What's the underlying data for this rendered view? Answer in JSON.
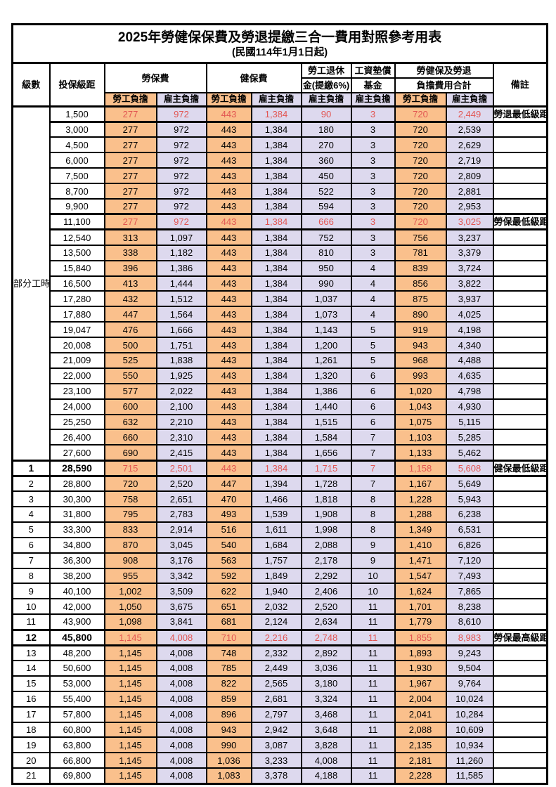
{
  "title": "2025年勞健保保費及勞退提繳三合一費用對照參考用表",
  "subtitle": "(民國114年1月1日起)",
  "header": {
    "level": "級數",
    "bracket": "投保級距",
    "labor_fee": "勞保費",
    "health_fee": "健保費",
    "pension_line1": "勞工退休",
    "pension_line2": "金(提繳6%)",
    "fund_line1": "工資墊償",
    "fund_line2": "基金",
    "total_line1": "勞健保及勞退",
    "total_line2": "負擔費用合計",
    "remark": "備註",
    "employee": "勞工負擔",
    "employer": "雇主負擔"
  },
  "part_time_label": "部分工時",
  "colors": {
    "employee_bg": "#FAC08C",
    "employer_bg": "#DDD9EE",
    "key_value_red": "#E25552",
    "remark_red": "#EE7C7C",
    "border": "#000000"
  },
  "rows": [
    {
      "level": "",
      "bracket": "1,500",
      "labor_emp": "277",
      "labor_er": "972",
      "health_emp": "443",
      "health_er": "1,384",
      "pension_er": "90",
      "fund_er": "3",
      "total_emp": "720",
      "total_er": "2,449",
      "remark": "勞退最低級距",
      "red": true,
      "bold": false
    },
    {
      "level": "",
      "bracket": "3,000",
      "labor_emp": "277",
      "labor_er": "972",
      "health_emp": "443",
      "health_er": "1,384",
      "pension_er": "180",
      "fund_er": "3",
      "total_emp": "720",
      "total_er": "2,539",
      "remark": "",
      "red": false,
      "bold": false
    },
    {
      "level": "",
      "bracket": "4,500",
      "labor_emp": "277",
      "labor_er": "972",
      "health_emp": "443",
      "health_er": "1,384",
      "pension_er": "270",
      "fund_er": "3",
      "total_emp": "720",
      "total_er": "2,629",
      "remark": "",
      "red": false,
      "bold": false
    },
    {
      "level": "",
      "bracket": "6,000",
      "labor_emp": "277",
      "labor_er": "972",
      "health_emp": "443",
      "health_er": "1,384",
      "pension_er": "360",
      "fund_er": "3",
      "total_emp": "720",
      "total_er": "2,719",
      "remark": "",
      "red": false,
      "bold": false
    },
    {
      "level": "",
      "bracket": "7,500",
      "labor_emp": "277",
      "labor_er": "972",
      "health_emp": "443",
      "health_er": "1,384",
      "pension_er": "450",
      "fund_er": "3",
      "total_emp": "720",
      "total_er": "2,809",
      "remark": "",
      "red": false,
      "bold": false
    },
    {
      "level": "",
      "bracket": "8,700",
      "labor_emp": "277",
      "labor_er": "972",
      "health_emp": "443",
      "health_er": "1,384",
      "pension_er": "522",
      "fund_er": "3",
      "total_emp": "720",
      "total_er": "2,881",
      "remark": "",
      "red": false,
      "bold": false
    },
    {
      "level": "",
      "bracket": "9,900",
      "labor_emp": "277",
      "labor_er": "972",
      "health_emp": "443",
      "health_er": "1,384",
      "pension_er": "594",
      "fund_er": "3",
      "total_emp": "720",
      "total_er": "2,953",
      "remark": "",
      "red": false,
      "bold": false
    },
    {
      "level": "",
      "bracket": "11,100",
      "labor_emp": "277",
      "labor_er": "972",
      "health_emp": "443",
      "health_er": "1,384",
      "pension_er": "666",
      "fund_er": "3",
      "total_emp": "720",
      "total_er": "3,025",
      "remark": "勞保最低級距",
      "red": true,
      "bold": false
    },
    {
      "level": "",
      "bracket": "12,540",
      "labor_emp": "313",
      "labor_er": "1,097",
      "health_emp": "443",
      "health_er": "1,384",
      "pension_er": "752",
      "fund_er": "3",
      "total_emp": "756",
      "total_er": "3,237",
      "remark": "",
      "red": false,
      "bold": false
    },
    {
      "level": "",
      "bracket": "13,500",
      "labor_emp": "338",
      "labor_er": "1,182",
      "health_emp": "443",
      "health_er": "1,384",
      "pension_er": "810",
      "fund_er": "3",
      "total_emp": "781",
      "total_er": "3,379",
      "remark": "",
      "red": false,
      "bold": false
    },
    {
      "level": "",
      "bracket": "15,840",
      "labor_emp": "396",
      "labor_er": "1,386",
      "health_emp": "443",
      "health_er": "1,384",
      "pension_er": "950",
      "fund_er": "4",
      "total_emp": "839",
      "total_er": "3,724",
      "remark": "",
      "red": false,
      "bold": false
    },
    {
      "level": "",
      "bracket": "16,500",
      "labor_emp": "413",
      "labor_er": "1,444",
      "health_emp": "443",
      "health_er": "1,384",
      "pension_er": "990",
      "fund_er": "4",
      "total_emp": "856",
      "total_er": "3,822",
      "remark": "",
      "red": false,
      "bold": false
    },
    {
      "level": "",
      "bracket": "17,280",
      "labor_emp": "432",
      "labor_er": "1,512",
      "health_emp": "443",
      "health_er": "1,384",
      "pension_er": "1,037",
      "fund_er": "4",
      "total_emp": "875",
      "total_er": "3,937",
      "remark": "",
      "red": false,
      "bold": false
    },
    {
      "level": "",
      "bracket": "17,880",
      "labor_emp": "447",
      "labor_er": "1,564",
      "health_emp": "443",
      "health_er": "1,384",
      "pension_er": "1,073",
      "fund_er": "4",
      "total_emp": "890",
      "total_er": "4,025",
      "remark": "",
      "red": false,
      "bold": false
    },
    {
      "level": "",
      "bracket": "19,047",
      "labor_emp": "476",
      "labor_er": "1,666",
      "health_emp": "443",
      "health_er": "1,384",
      "pension_er": "1,143",
      "fund_er": "5",
      "total_emp": "919",
      "total_er": "4,198",
      "remark": "",
      "red": false,
      "bold": false
    },
    {
      "level": "",
      "bracket": "20,008",
      "labor_emp": "500",
      "labor_er": "1,751",
      "health_emp": "443",
      "health_er": "1,384",
      "pension_er": "1,200",
      "fund_er": "5",
      "total_emp": "943",
      "total_er": "4,340",
      "remark": "",
      "red": false,
      "bold": false
    },
    {
      "level": "",
      "bracket": "21,009",
      "labor_emp": "525",
      "labor_er": "1,838",
      "health_emp": "443",
      "health_er": "1,384",
      "pension_er": "1,261",
      "fund_er": "5",
      "total_emp": "968",
      "total_er": "4,488",
      "remark": "",
      "red": false,
      "bold": false
    },
    {
      "level": "",
      "bracket": "22,000",
      "labor_emp": "550",
      "labor_er": "1,925",
      "health_emp": "443",
      "health_er": "1,384",
      "pension_er": "1,320",
      "fund_er": "6",
      "total_emp": "993",
      "total_er": "4,635",
      "remark": "",
      "red": false,
      "bold": false
    },
    {
      "level": "",
      "bracket": "23,100",
      "labor_emp": "577",
      "labor_er": "2,022",
      "health_emp": "443",
      "health_er": "1,384",
      "pension_er": "1,386",
      "fund_er": "6",
      "total_emp": "1,020",
      "total_er": "4,798",
      "remark": "",
      "red": false,
      "bold": false
    },
    {
      "level": "",
      "bracket": "24,000",
      "labor_emp": "600",
      "labor_er": "2,100",
      "health_emp": "443",
      "health_er": "1,384",
      "pension_er": "1,440",
      "fund_er": "6",
      "total_emp": "1,043",
      "total_er": "4,930",
      "remark": "",
      "red": false,
      "bold": false
    },
    {
      "level": "",
      "bracket": "25,250",
      "labor_emp": "632",
      "labor_er": "2,210",
      "health_emp": "443",
      "health_er": "1,384",
      "pension_er": "1,515",
      "fund_er": "6",
      "total_emp": "1,075",
      "total_er": "5,115",
      "remark": "",
      "red": false,
      "bold": false
    },
    {
      "level": "",
      "bracket": "26,400",
      "labor_emp": "660",
      "labor_er": "2,310",
      "health_emp": "443",
      "health_er": "1,384",
      "pension_er": "1,584",
      "fund_er": "7",
      "total_emp": "1,103",
      "total_er": "5,285",
      "remark": "",
      "red": false,
      "bold": false
    },
    {
      "level": "",
      "bracket": "27,600",
      "labor_emp": "690",
      "labor_er": "2,415",
      "health_emp": "443",
      "health_er": "1,384",
      "pension_er": "1,656",
      "fund_er": "7",
      "total_emp": "1,133",
      "total_er": "5,462",
      "remark": "",
      "red": false,
      "bold": false
    },
    {
      "level": "1",
      "bracket": "28,590",
      "labor_emp": "715",
      "labor_er": "2,501",
      "health_emp": "443",
      "health_er": "1,384",
      "pension_er": "1,715",
      "fund_er": "7",
      "total_emp": "1,158",
      "total_er": "5,608",
      "remark": "健保最低級距",
      "red": true,
      "bold": true
    },
    {
      "level": "2",
      "bracket": "28,800",
      "labor_emp": "720",
      "labor_er": "2,520",
      "health_emp": "447",
      "health_er": "1,394",
      "pension_er": "1,728",
      "fund_er": "7",
      "total_emp": "1,167",
      "total_er": "5,649",
      "remark": "",
      "red": false,
      "bold": false
    },
    {
      "level": "3",
      "bracket": "30,300",
      "labor_emp": "758",
      "labor_er": "2,651",
      "health_emp": "470",
      "health_er": "1,466",
      "pension_er": "1,818",
      "fund_er": "8",
      "total_emp": "1,228",
      "total_er": "5,943",
      "remark": "",
      "red": false,
      "bold": false
    },
    {
      "level": "4",
      "bracket": "31,800",
      "labor_emp": "795",
      "labor_er": "2,783",
      "health_emp": "493",
      "health_er": "1,539",
      "pension_er": "1,908",
      "fund_er": "8",
      "total_emp": "1,288",
      "total_er": "6,238",
      "remark": "",
      "red": false,
      "bold": false
    },
    {
      "level": "5",
      "bracket": "33,300",
      "labor_emp": "833",
      "labor_er": "2,914",
      "health_emp": "516",
      "health_er": "1,611",
      "pension_er": "1,998",
      "fund_er": "8",
      "total_emp": "1,349",
      "total_er": "6,531",
      "remark": "",
      "red": false,
      "bold": false
    },
    {
      "level": "6",
      "bracket": "34,800",
      "labor_emp": "870",
      "labor_er": "3,045",
      "health_emp": "540",
      "health_er": "1,684",
      "pension_er": "2,088",
      "fund_er": "9",
      "total_emp": "1,410",
      "total_er": "6,826",
      "remark": "",
      "red": false,
      "bold": false
    },
    {
      "level": "7",
      "bracket": "36,300",
      "labor_emp": "908",
      "labor_er": "3,176",
      "health_emp": "563",
      "health_er": "1,757",
      "pension_er": "2,178",
      "fund_er": "9",
      "total_emp": "1,471",
      "total_er": "7,120",
      "remark": "",
      "red": false,
      "bold": false
    },
    {
      "level": "8",
      "bracket": "38,200",
      "labor_emp": "955",
      "labor_er": "3,342",
      "health_emp": "592",
      "health_er": "1,849",
      "pension_er": "2,292",
      "fund_er": "10",
      "total_emp": "1,547",
      "total_er": "7,493",
      "remark": "",
      "red": false,
      "bold": false
    },
    {
      "level": "9",
      "bracket": "40,100",
      "labor_emp": "1,002",
      "labor_er": "3,509",
      "health_emp": "622",
      "health_er": "1,940",
      "pension_er": "2,406",
      "fund_er": "10",
      "total_emp": "1,624",
      "total_er": "7,865",
      "remark": "",
      "red": false,
      "bold": false
    },
    {
      "level": "10",
      "bracket": "42,000",
      "labor_emp": "1,050",
      "labor_er": "3,675",
      "health_emp": "651",
      "health_er": "2,032",
      "pension_er": "2,520",
      "fund_er": "11",
      "total_emp": "1,701",
      "total_er": "8,238",
      "remark": "",
      "red": false,
      "bold": false
    },
    {
      "level": "11",
      "bracket": "43,900",
      "labor_emp": "1,098",
      "labor_er": "3,841",
      "health_emp": "681",
      "health_er": "2,124",
      "pension_er": "2,634",
      "fund_er": "11",
      "total_emp": "1,779",
      "total_er": "8,610",
      "remark": "",
      "red": false,
      "bold": false
    },
    {
      "level": "12",
      "bracket": "45,800",
      "labor_emp": "1,145",
      "labor_er": "4,008",
      "health_emp": "710",
      "health_er": "2,216",
      "pension_er": "2,748",
      "fund_er": "11",
      "total_emp": "1,855",
      "total_er": "8,983",
      "remark": "勞保最高級距",
      "red": true,
      "bold": true
    },
    {
      "level": "13",
      "bracket": "48,200",
      "labor_emp": "1,145",
      "labor_er": "4,008",
      "health_emp": "748",
      "health_er": "2,332",
      "pension_er": "2,892",
      "fund_er": "11",
      "total_emp": "1,893",
      "total_er": "9,243",
      "remark": "",
      "red": false,
      "bold": false
    },
    {
      "level": "14",
      "bracket": "50,600",
      "labor_emp": "1,145",
      "labor_er": "4,008",
      "health_emp": "785",
      "health_er": "2,449",
      "pension_er": "3,036",
      "fund_er": "11",
      "total_emp": "1,930",
      "total_er": "9,504",
      "remark": "",
      "red": false,
      "bold": false
    },
    {
      "level": "15",
      "bracket": "53,000",
      "labor_emp": "1,145",
      "labor_er": "4,008",
      "health_emp": "822",
      "health_er": "2,565",
      "pension_er": "3,180",
      "fund_er": "11",
      "total_emp": "1,967",
      "total_er": "9,764",
      "remark": "",
      "red": false,
      "bold": false
    },
    {
      "level": "16",
      "bracket": "55,400",
      "labor_emp": "1,145",
      "labor_er": "4,008",
      "health_emp": "859",
      "health_er": "2,681",
      "pension_er": "3,324",
      "fund_er": "11",
      "total_emp": "2,004",
      "total_er": "10,024",
      "remark": "",
      "red": false,
      "bold": false
    },
    {
      "level": "17",
      "bracket": "57,800",
      "labor_emp": "1,145",
      "labor_er": "4,008",
      "health_emp": "896",
      "health_er": "2,797",
      "pension_er": "3,468",
      "fund_er": "11",
      "total_emp": "2,041",
      "total_er": "10,284",
      "remark": "",
      "red": false,
      "bold": false
    },
    {
      "level": "18",
      "bracket": "60,800",
      "labor_emp": "1,145",
      "labor_er": "4,008",
      "health_emp": "943",
      "health_er": "2,942",
      "pension_er": "3,648",
      "fund_er": "11",
      "total_emp": "2,088",
      "total_er": "10,609",
      "remark": "",
      "red": false,
      "bold": false
    },
    {
      "level": "19",
      "bracket": "63,800",
      "labor_emp": "1,145",
      "labor_er": "4,008",
      "health_emp": "990",
      "health_er": "3,087",
      "pension_er": "3,828",
      "fund_er": "11",
      "total_emp": "2,135",
      "total_er": "10,934",
      "remark": "",
      "red": false,
      "bold": false
    },
    {
      "level": "20",
      "bracket": "66,800",
      "labor_emp": "1,145",
      "labor_er": "4,008",
      "health_emp": "1,036",
      "health_er": "3,233",
      "pension_er": "4,008",
      "fund_er": "11",
      "total_emp": "2,181",
      "total_er": "11,260",
      "remark": "",
      "red": false,
      "bold": false
    },
    {
      "level": "21",
      "bracket": "69,800",
      "labor_emp": "1,145",
      "labor_er": "4,008",
      "health_emp": "1,083",
      "health_er": "3,378",
      "pension_er": "4,188",
      "fund_er": "11",
      "total_emp": "2,228",
      "total_er": "11,585",
      "remark": "",
      "red": false,
      "bold": false
    }
  ]
}
